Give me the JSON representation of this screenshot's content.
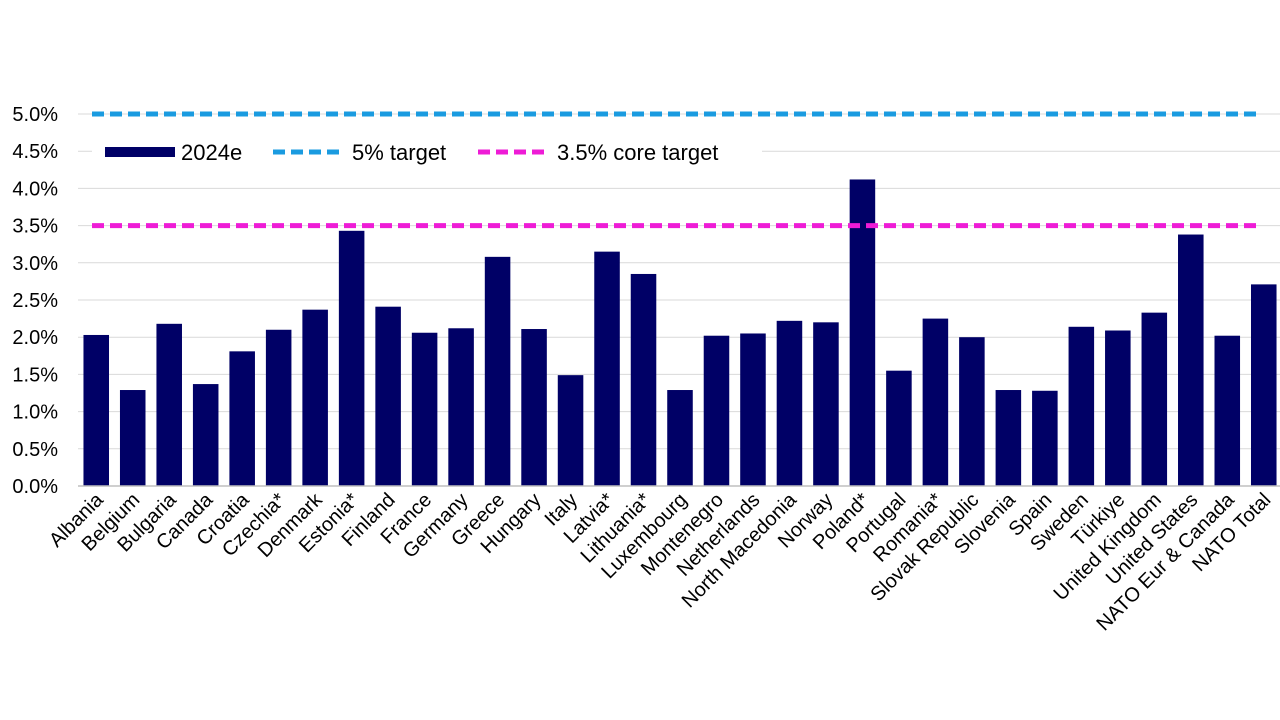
{
  "chart_data": {
    "type": "bar",
    "title": "",
    "xlabel": "",
    "ylabel": "",
    "ylim": [
      0,
      5
    ],
    "y_ticks": [
      "0.0%",
      "0.5%",
      "1.0%",
      "1.5%",
      "2.0%",
      "2.5%",
      "3.0%",
      "3.5%",
      "4.0%",
      "4.5%",
      "5.0%"
    ],
    "y_tick_values": [
      0,
      0.5,
      1,
      1.5,
      2,
      2.5,
      3,
      3.5,
      4,
      4.5,
      5
    ],
    "grid": true,
    "legend_position": "top-left",
    "categories": [
      "Albania",
      "Belgium",
      "Bulgaria",
      "Canada",
      "Croatia",
      "Czechia*",
      "Denmark",
      "Estonia*",
      "Finland",
      "France",
      "Germany",
      "Greece",
      "Hungary",
      "Italy",
      "Latvia*",
      "Lithuania*",
      "Luxembourg",
      "Montenegro",
      "Netherlands",
      "North Macedonia",
      "Norway",
      "Poland*",
      "Portugal",
      "Romania*",
      "Slovak Republic",
      "Slovenia",
      "Spain",
      "Sweden",
      "Türkiye",
      "United Kingdom",
      "United States",
      "NATO Eur & Canada",
      "NATO Total"
    ],
    "series": [
      {
        "name": "2024e",
        "color": "#000066",
        "values": [
          2.03,
          1.29,
          2.18,
          1.37,
          1.81,
          2.1,
          2.37,
          3.43,
          2.41,
          2.06,
          2.12,
          3.08,
          2.11,
          1.49,
          3.15,
          2.85,
          1.29,
          2.02,
          2.05,
          2.22,
          2.2,
          4.12,
          1.55,
          2.25,
          2.0,
          1.29,
          1.28,
          2.14,
          2.09,
          2.33,
          3.38,
          2.02,
          2.71
        ]
      }
    ],
    "reference_lines": [
      {
        "name": "5% target",
        "value": 5.0,
        "color": "#1a9be0",
        "style": "dashed"
      },
      {
        "name": "3.5% core target",
        "value": 3.5,
        "color": "#ee1cd6",
        "style": "dashed"
      }
    ],
    "legend": [
      "2024e",
      "5% target",
      "3.5% core target"
    ]
  }
}
